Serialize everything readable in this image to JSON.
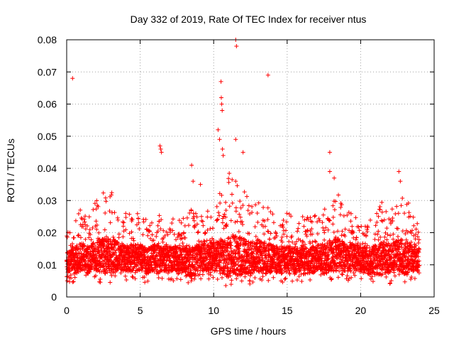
{
  "chart_data": {
    "type": "scatter",
    "title": "Day 332 of 2019, Rate Of TEC Index for receiver ntus",
    "xlabel": "GPS time / hours",
    "ylabel": "ROTI / TECUs",
    "xlim": [
      0,
      25
    ],
    "ylim": [
      0,
      0.08
    ],
    "xticks": [
      "0",
      "5",
      "10",
      "15",
      "20",
      "25"
    ],
    "yticks": [
      "0",
      "0.01",
      "0.02",
      "0.03",
      "0.04",
      "0.05",
      "0.06",
      "0.07",
      "0.08"
    ],
    "grid": true,
    "marker": "+",
    "color": "#ff0000",
    "series": [
      {
        "name": "ROTI",
        "outliers": [
          {
            "x": 0.4,
            "y": 0.068
          },
          {
            "x": 6.35,
            "y": 0.047
          },
          {
            "x": 6.4,
            "y": 0.046
          },
          {
            "x": 6.45,
            "y": 0.045
          },
          {
            "x": 8.5,
            "y": 0.041
          },
          {
            "x": 8.6,
            "y": 0.036
          },
          {
            "x": 9.1,
            "y": 0.035
          },
          {
            "x": 10.3,
            "y": 0.052
          },
          {
            "x": 10.4,
            "y": 0.049
          },
          {
            "x": 10.5,
            "y": 0.067
          },
          {
            "x": 10.52,
            "y": 0.062
          },
          {
            "x": 10.55,
            "y": 0.06
          },
          {
            "x": 10.58,
            "y": 0.058
          },
          {
            "x": 10.6,
            "y": 0.046
          },
          {
            "x": 10.65,
            "y": 0.044
          },
          {
            "x": 11.5,
            "y": 0.08
          },
          {
            "x": 11.55,
            "y": 0.078
          },
          {
            "x": 11.5,
            "y": 0.049
          },
          {
            "x": 12.0,
            "y": 0.045
          },
          {
            "x": 13.7,
            "y": 0.069
          },
          {
            "x": 17.9,
            "y": 0.045
          },
          {
            "x": 17.9,
            "y": 0.039
          },
          {
            "x": 18.2,
            "y": 0.037
          },
          {
            "x": 22.6,
            "y": 0.039
          },
          {
            "x": 22.7,
            "y": 0.036
          }
        ],
        "envelope": {
          "x": [
            0,
            0.5,
            1,
            1.5,
            2,
            2.5,
            3,
            3.5,
            4,
            4.5,
            5,
            5.5,
            6,
            6.5,
            7,
            7.5,
            8,
            8.5,
            9,
            9.5,
            10,
            10.5,
            11,
            11.5,
            12,
            12.5,
            13,
            13.5,
            14,
            14.5,
            15,
            15.5,
            16,
            16.5,
            17,
            17.5,
            18,
            18.5,
            19,
            19.5,
            20,
            20.5,
            21,
            21.5,
            22,
            22.5,
            23,
            23.5,
            24
          ],
          "low": [
            0.005,
            0.004,
            0.005,
            0.004,
            0.005,
            0.004,
            0.004,
            0.005,
            0.005,
            0.005,
            0.005,
            0.004,
            0.005,
            0.005,
            0.005,
            0.005,
            0.005,
            0.003,
            0.005,
            0.005,
            0.005,
            0.004,
            0.003,
            0.004,
            0.003,
            0.004,
            0.005,
            0.004,
            0.005,
            0.004,
            0.005,
            0.004,
            0.004,
            0.004,
            0.005,
            0.004,
            0.005,
            0.005,
            0.005,
            0.005,
            0.005,
            0.004,
            0.004,
            0.004,
            0.004,
            0.005,
            0.004,
            0.005,
            0.005
          ],
          "high": [
            0.02,
            0.024,
            0.028,
            0.026,
            0.03,
            0.033,
            0.034,
            0.028,
            0.026,
            0.027,
            0.026,
            0.024,
            0.026,
            0.025,
            0.024,
            0.025,
            0.026,
            0.028,
            0.026,
            0.027,
            0.029,
            0.033,
            0.039,
            0.036,
            0.035,
            0.03,
            0.031,
            0.029,
            0.026,
            0.025,
            0.027,
            0.024,
            0.025,
            0.025,
            0.026,
            0.027,
            0.03,
            0.032,
            0.026,
            0.027,
            0.024,
            0.025,
            0.027,
            0.03,
            0.028,
            0.03,
            0.034,
            0.028,
            0.023
          ]
        }
      }
    ]
  }
}
